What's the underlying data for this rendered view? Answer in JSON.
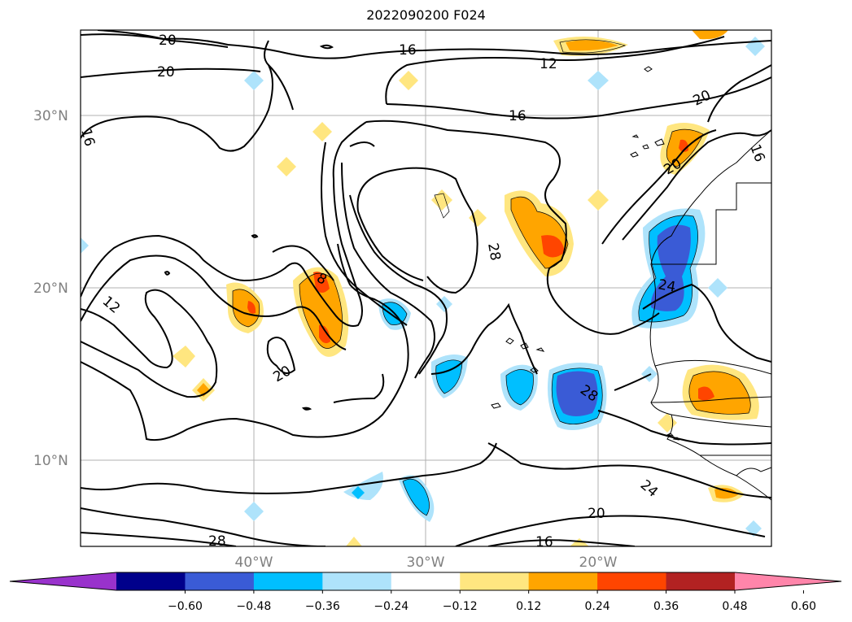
{
  "title": "2022090200 F024",
  "lat_labels": [
    "30°N",
    "20°N",
    "10°N"
  ],
  "lon_labels": [
    "40°W",
    "30°W",
    "20°W"
  ],
  "contour_labels": [
    "20",
    "20",
    "16",
    "12",
    "16",
    "20",
    "16",
    "20",
    "16",
    "28",
    "8",
    "12",
    "20",
    "24",
    "28",
    "24",
    "20",
    "16",
    "28"
  ],
  "colorbar": {
    "ticks": [
      "−0.60",
      "−0.48",
      "−0.36",
      "−0.24",
      "−0.12",
      "0.12",
      "0.24",
      "0.36",
      "0.48",
      "0.60"
    ],
    "colors": [
      "#9932cc",
      "#00008b",
      "#3a5bd6",
      "#00bfff",
      "#aee3fb",
      "#ffffff",
      "#ffe680",
      "#ffa500",
      "#ff4500",
      "#b22222",
      "#ff85aa"
    ]
  }
}
